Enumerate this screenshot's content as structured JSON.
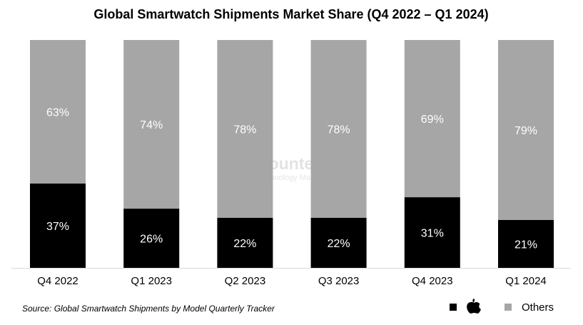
{
  "chart_data": {
    "type": "bar",
    "stacked": true,
    "title": "Global Smartwatch Shipments Market Share (Q4 2022 – Q1 2024)",
    "categories": [
      "Q4 2022",
      "Q1 2023",
      "Q2 2023",
      "Q3 2023",
      "Q4 2023",
      "Q1 2024"
    ],
    "series": [
      {
        "name": "Apple",
        "color": "#000000",
        "values": [
          37,
          26,
          22,
          22,
          31,
          21
        ],
        "labels": [
          "37%",
          "26%",
          "22%",
          "22%",
          "31%",
          "21%"
        ]
      },
      {
        "name": "Others",
        "color": "#a6a6a6",
        "values": [
          63,
          74,
          78,
          78,
          69,
          79
        ],
        "labels": [
          "63%",
          "74%",
          "78%",
          "78%",
          "69%",
          "79%"
        ]
      }
    ],
    "ylim": [
      0,
      100
    ],
    "grid": false,
    "legend_position": "bottom-right"
  },
  "source": "Source: Global Smartwatch Shipments by Model Quarterly Tracker",
  "legend": {
    "apple_icon": "apple-logo-icon",
    "others_label": "Others"
  },
  "watermark": {
    "brand": "Counterpoint",
    "tagline": "Technology Market Research"
  }
}
